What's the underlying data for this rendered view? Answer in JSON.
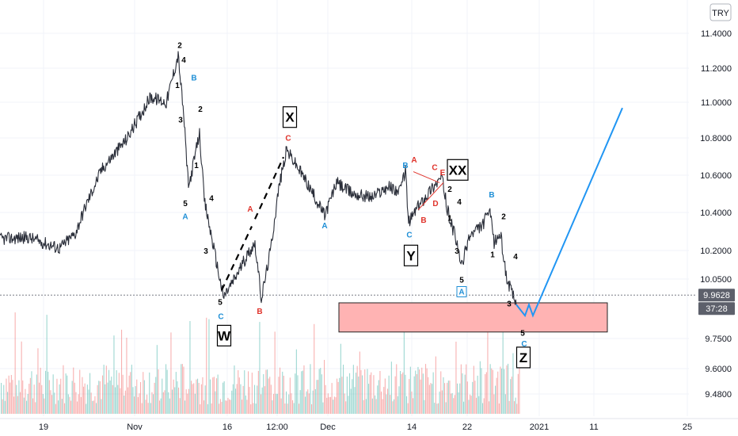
{
  "chart_data": {
    "type": "line",
    "symbol_currency": "TRY",
    "y_ticks": [
      "11.4000",
      "11.2000",
      "11.0000",
      "10.8000",
      "10.6000",
      "10.4000",
      "10.2000",
      "10.0500",
      "9.7500",
      "9.6000",
      "9.4800"
    ],
    "x_ticks": [
      "19",
      "Nov",
      "16",
      "12:00",
      "Dec",
      "14",
      "22",
      "2021",
      "11",
      "25"
    ],
    "ylim": [
      9.38,
      11.49
    ],
    "current_price": "9.9628",
    "countdown": "37:28",
    "colors": {
      "price": "#2a2e39",
      "projection": "#2196f3",
      "zone_fill": "#ffb3b3",
      "label_red": "#e0342c",
      "label_blue": "#1f8fd6",
      "vol_up": "#26a69a",
      "vol_down": "#ef5350"
    },
    "price_path": [
      [
        0,
        10.27
      ],
      [
        35,
        10.28
      ],
      [
        75,
        10.22
      ],
      [
        95,
        10.3
      ],
      [
        108,
        10.45
      ],
      [
        128,
        10.65
      ],
      [
        160,
        10.82
      ],
      [
        190,
        11.05
      ],
      [
        210,
        11.02
      ],
      [
        225,
        11.28
      ],
      [
        232,
        10.95
      ],
      [
        238,
        10.55
      ],
      [
        252,
        10.85
      ],
      [
        258,
        10.48
      ],
      [
        270,
        10.22
      ],
      [
        282,
        9.95
      ],
      [
        296,
        10.05
      ],
      [
        312,
        10.18
      ],
      [
        322,
        10.25
      ],
      [
        330,
        9.94
      ],
      [
        342,
        10.22
      ],
      [
        352,
        10.55
      ],
      [
        362,
        10.76
      ],
      [
        385,
        10.6
      ],
      [
        410,
        10.4
      ],
      [
        425,
        10.58
      ],
      [
        445,
        10.52
      ],
      [
        470,
        10.5
      ],
      [
        490,
        10.56
      ],
      [
        505,
        10.53
      ],
      [
        512,
        10.65
      ],
      [
        516,
        10.36
      ],
      [
        525,
        10.43
      ],
      [
        545,
        10.55
      ],
      [
        558,
        10.61
      ],
      [
        565,
        10.43
      ],
      [
        575,
        10.28
      ],
      [
        583,
        10.12
      ],
      [
        592,
        10.28
      ],
      [
        610,
        10.35
      ],
      [
        618,
        10.43
      ],
      [
        624,
        10.25
      ],
      [
        632,
        10.3
      ],
      [
        640,
        10.05
      ],
      [
        652,
        9.91
      ]
    ],
    "projection_path": [
      [
        652,
        9.91
      ],
      [
        663,
        9.85
      ],
      [
        668,
        9.91
      ],
      [
        673,
        9.85
      ],
      [
        786,
        10.99
      ]
    ],
    "dashed_lines": [
      [
        [
          280,
          9.99
        ],
        [
          318,
          10.34
        ]
      ],
      [
        [
          322,
          10.38
        ],
        [
          358,
          10.72
        ]
      ]
    ],
    "triangle_lines": [
      [
        [
          522,
          10.64
        ],
        [
          555,
          10.58
        ]
      ],
      [
        [
          528,
          10.43
        ],
        [
          560,
          10.58
        ]
      ]
    ],
    "support_zone": {
      "y_top": 9.92,
      "y_bottom": 9.76
    },
    "wave_labels": [
      {
        "text": "2",
        "x": 227,
        "y": 11.32,
        "color": "#000000"
      },
      {
        "text": "4",
        "x": 232,
        "y": 11.24,
        "color": "#000000"
      },
      {
        "text": "B",
        "x": 245,
        "y": 11.14,
        "color": "#1f8fd6"
      },
      {
        "text": "1",
        "x": 224,
        "y": 11.1,
        "color": "#000000"
      },
      {
        "text": "2",
        "x": 253,
        "y": 10.97,
        "color": "#000000"
      },
      {
        "text": "3",
        "x": 228,
        "y": 10.91,
        "color": "#000000"
      },
      {
        "text": "1",
        "x": 248,
        "y": 10.66,
        "color": "#000000"
      },
      {
        "text": "4",
        "x": 267,
        "y": 10.48,
        "color": "#000000"
      },
      {
        "text": "5",
        "x": 234,
        "y": 10.45,
        "color": "#000000"
      },
      {
        "text": "A",
        "x": 234,
        "y": 10.38,
        "color": "#1f8fd6"
      },
      {
        "text": "3",
        "x": 260,
        "y": 10.19,
        "color": "#000000"
      },
      {
        "text": "5",
        "x": 278,
        "y": 9.91,
        "color": "#000000"
      },
      {
        "text": "C",
        "x": 279,
        "y": 9.83,
        "color": "#1f8fd6"
      },
      {
        "text": "B",
        "x": 328,
        "y": 9.86,
        "color": "#e0342c"
      },
      {
        "text": "A",
        "x": 316,
        "y": 10.42,
        "color": "#e0342c"
      },
      {
        "text": "C",
        "x": 364,
        "y": 10.81,
        "color": "#e0342c"
      },
      {
        "text": "A",
        "x": 410,
        "y": 10.33,
        "color": "#1f8fd6"
      },
      {
        "text": "B",
        "x": 512,
        "y": 10.66,
        "color": "#1f8fd6"
      },
      {
        "text": "A",
        "x": 523,
        "y": 10.69,
        "color": "#e0342c"
      },
      {
        "text": "C",
        "x": 549,
        "y": 10.65,
        "color": "#e0342c"
      },
      {
        "text": "E",
        "x": 559,
        "y": 10.62,
        "color": "#e0342c"
      },
      {
        "text": "2",
        "x": 568,
        "y": 10.53,
        "color": "#000000"
      },
      {
        "text": "4",
        "x": 580,
        "y": 10.46,
        "color": "#000000"
      },
      {
        "text": "D",
        "x": 550,
        "y": 10.45,
        "color": "#e0342c"
      },
      {
        "text": "B",
        "x": 535,
        "y": 10.36,
        "color": "#e0342c"
      },
      {
        "text": "1",
        "x": 568,
        "y": 10.37,
        "color": "#000000"
      },
      {
        "text": "C",
        "x": 517,
        "y": 10.28,
        "color": "#1f8fd6"
      },
      {
        "text": "3",
        "x": 577,
        "y": 10.19,
        "color": "#000000"
      },
      {
        "text": "B",
        "x": 621,
        "y": 10.5,
        "color": "#1f8fd6"
      },
      {
        "text": "2",
        "x": 636,
        "y": 10.38,
        "color": "#000000"
      },
      {
        "text": "1",
        "x": 622,
        "y": 10.17,
        "color": "#000000"
      },
      {
        "text": "4",
        "x": 651,
        "y": 10.16,
        "color": "#000000"
      },
      {
        "text": "5",
        "x": 583,
        "y": 10.03,
        "color": "#000000"
      },
      {
        "text": "3",
        "x": 643,
        "y": 9.9,
        "color": "#000000"
      },
      {
        "text": "5",
        "x": 660,
        "y": 9.74,
        "color": "#000000"
      },
      {
        "text": "C",
        "x": 662,
        "y": 9.68,
        "color": "#1f8fd6"
      }
    ],
    "boxed_labels": [
      {
        "text": "X",
        "x": 366,
        "y": 10.94
      },
      {
        "text": "W",
        "x": 283,
        "y": 9.74
      },
      {
        "text": "Y",
        "x": 519,
        "y": 10.18
      },
      {
        "text": "XX",
        "x": 578,
        "y": 10.65
      },
      {
        "text": "Z",
        "x": 661,
        "y": 9.62
      }
    ],
    "boxed_small_labels": [
      {
        "text": "A",
        "x": 583,
        "y": 9.97,
        "color": "#1f8fd6"
      }
    ]
  }
}
